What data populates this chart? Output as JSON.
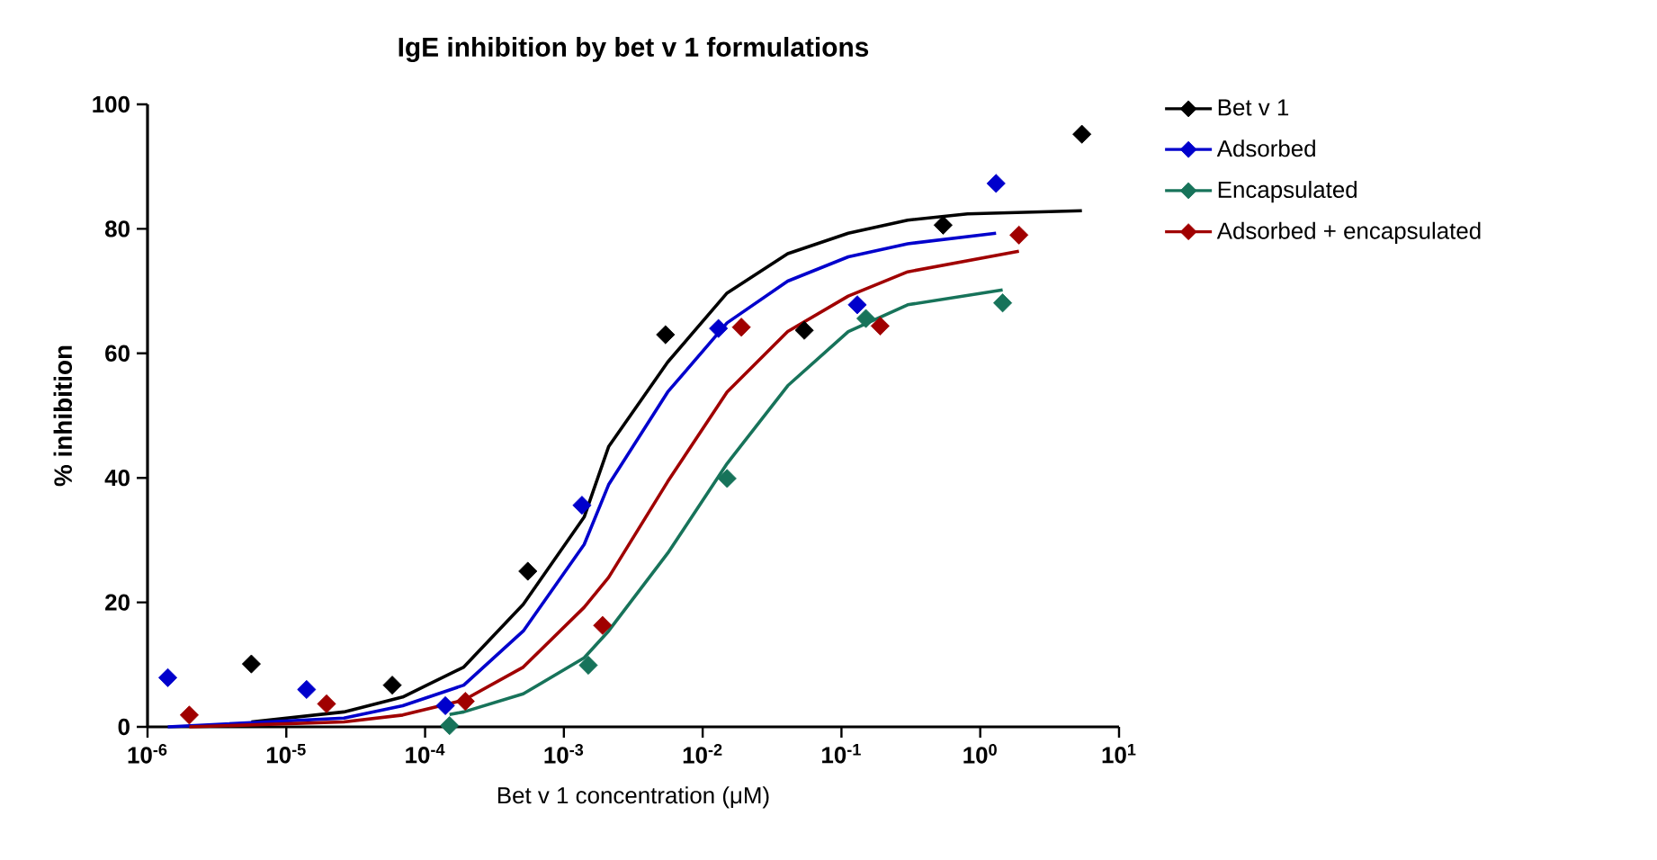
{
  "chart_data": {
    "type": "scatter",
    "title": "IgE inhibition by bet v 1 formulations",
    "xlabel": "Bet v 1 concentration (μM)",
    "ylabel": "% inhibition",
    "log": "x",
    "legend": "right",
    "marker": "diamond",
    "xlim": [
      1e-06,
      10
    ],
    "ylim": [
      0,
      100
    ],
    "xticks": [
      {
        "value": 1e-06,
        "label": "10$^{-6}$"
      },
      {
        "value": 1e-05,
        "label": "10$^{-5}$"
      },
      {
        "value": 0.0001,
        "label": "10$^{-4}$"
      },
      {
        "value": 0.001,
        "label": "10$^{-3}$"
      },
      {
        "value": 0.01,
        "label": "10$^{-2}$"
      },
      {
        "value": 0.1,
        "label": "10$^{-1}$"
      },
      {
        "value": 1,
        "label": "10$^{0}$"
      },
      {
        "value": 10,
        "label": "10$^{1}$"
      }
    ],
    "yticks": [
      0,
      20,
      40,
      60,
      80,
      100
    ],
    "series": [
      {
        "name": "Bet v 1",
        "type": "scatter",
        "color": "#000000",
        "x": [
          5.6e-06,
          5.8e-05,
          0.00055,
          0.0054,
          0.054,
          0.54,
          5.4
        ],
        "values": [
          10.1,
          6.7,
          25,
          63,
          63.7,
          80.6,
          95.2
        ]
      },
      {
        "name": "Adsorbed",
        "type": "scatter",
        "color": "#0000cc",
        "x": [
          1.4e-06,
          1.4e-05,
          0.00014,
          0.00135,
          0.013,
          0.13,
          1.3
        ],
        "values": [
          7.9,
          6.0,
          3.4,
          35.6,
          64,
          67.8,
          87.3
        ]
      },
      {
        "name": "Encapsulated",
        "type": "scatter",
        "color": "#17735a",
        "x": [
          0.00015,
          0.0015,
          0.015,
          0.15,
          1.45
        ],
        "values": [
          0.2,
          9.9,
          39.9,
          65.6,
          68.1
        ]
      },
      {
        "name": "Adsorbed + encapsulated",
        "type": "scatter",
        "color": "#a00000",
        "x": [
          2e-06,
          1.95e-05,
          0.000195,
          0.0019,
          0.019,
          0.19,
          1.9
        ],
        "values": [
          1.9,
          3.7,
          4.1,
          16.3,
          64.2,
          64.4,
          79
        ]
      },
      {
        "type": "line",
        "marker": "none",
        "color": "#000000",
        "x": [
          5.6e-06,
          2.6e-05,
          6.9e-05,
          0.00019,
          0.00051,
          0.0014,
          0.0021,
          0.0056,
          0.015,
          0.041,
          0.112,
          0.3,
          0.81,
          5.4
        ],
        "values": [
          0.8,
          2.4,
          4.8,
          9.6,
          19.7,
          33.7,
          45,
          58.6,
          69.7,
          76,
          79.3,
          81.4,
          82.4,
          82.9
        ]
      },
      {
        "type": "line",
        "marker": "none",
        "color": "#0000cc",
        "x": [
          1.4e-06,
          2.6e-05,
          6.9e-05,
          0.00019,
          0.00051,
          0.0014,
          0.0021,
          0.0056,
          0.015,
          0.041,
          0.112,
          0.3,
          1.3
        ],
        "values": [
          0,
          1.4,
          3.4,
          6.7,
          15.4,
          29.3,
          38.9,
          53.8,
          64.9,
          71.6,
          75.5,
          77.6,
          79.3
        ]
      },
      {
        "type": "line",
        "marker": "none",
        "color": "#17735a",
        "x": [
          0.00015,
          0.00019,
          0.00051,
          0.0014,
          0.0021,
          0.0056,
          0.015,
          0.041,
          0.112,
          0.3,
          1.45
        ],
        "values": [
          2.0,
          2.4,
          5.3,
          11.1,
          15.4,
          27.9,
          42.3,
          54.8,
          63.5,
          67.8,
          70.2
        ]
      },
      {
        "type": "line",
        "marker": "none",
        "color": "#a00000",
        "x": [
          2e-06,
          2.6e-05,
          6.9e-05,
          0.00019,
          0.00051,
          0.0014,
          0.0021,
          0.0056,
          0.015,
          0.041,
          0.112,
          0.3,
          1.9
        ],
        "values": [
          0,
          0.8,
          1.9,
          4.3,
          9.6,
          19.2,
          24,
          39.4,
          53.8,
          63.5,
          69.2,
          73.1,
          76.4
        ]
      }
    ]
  }
}
